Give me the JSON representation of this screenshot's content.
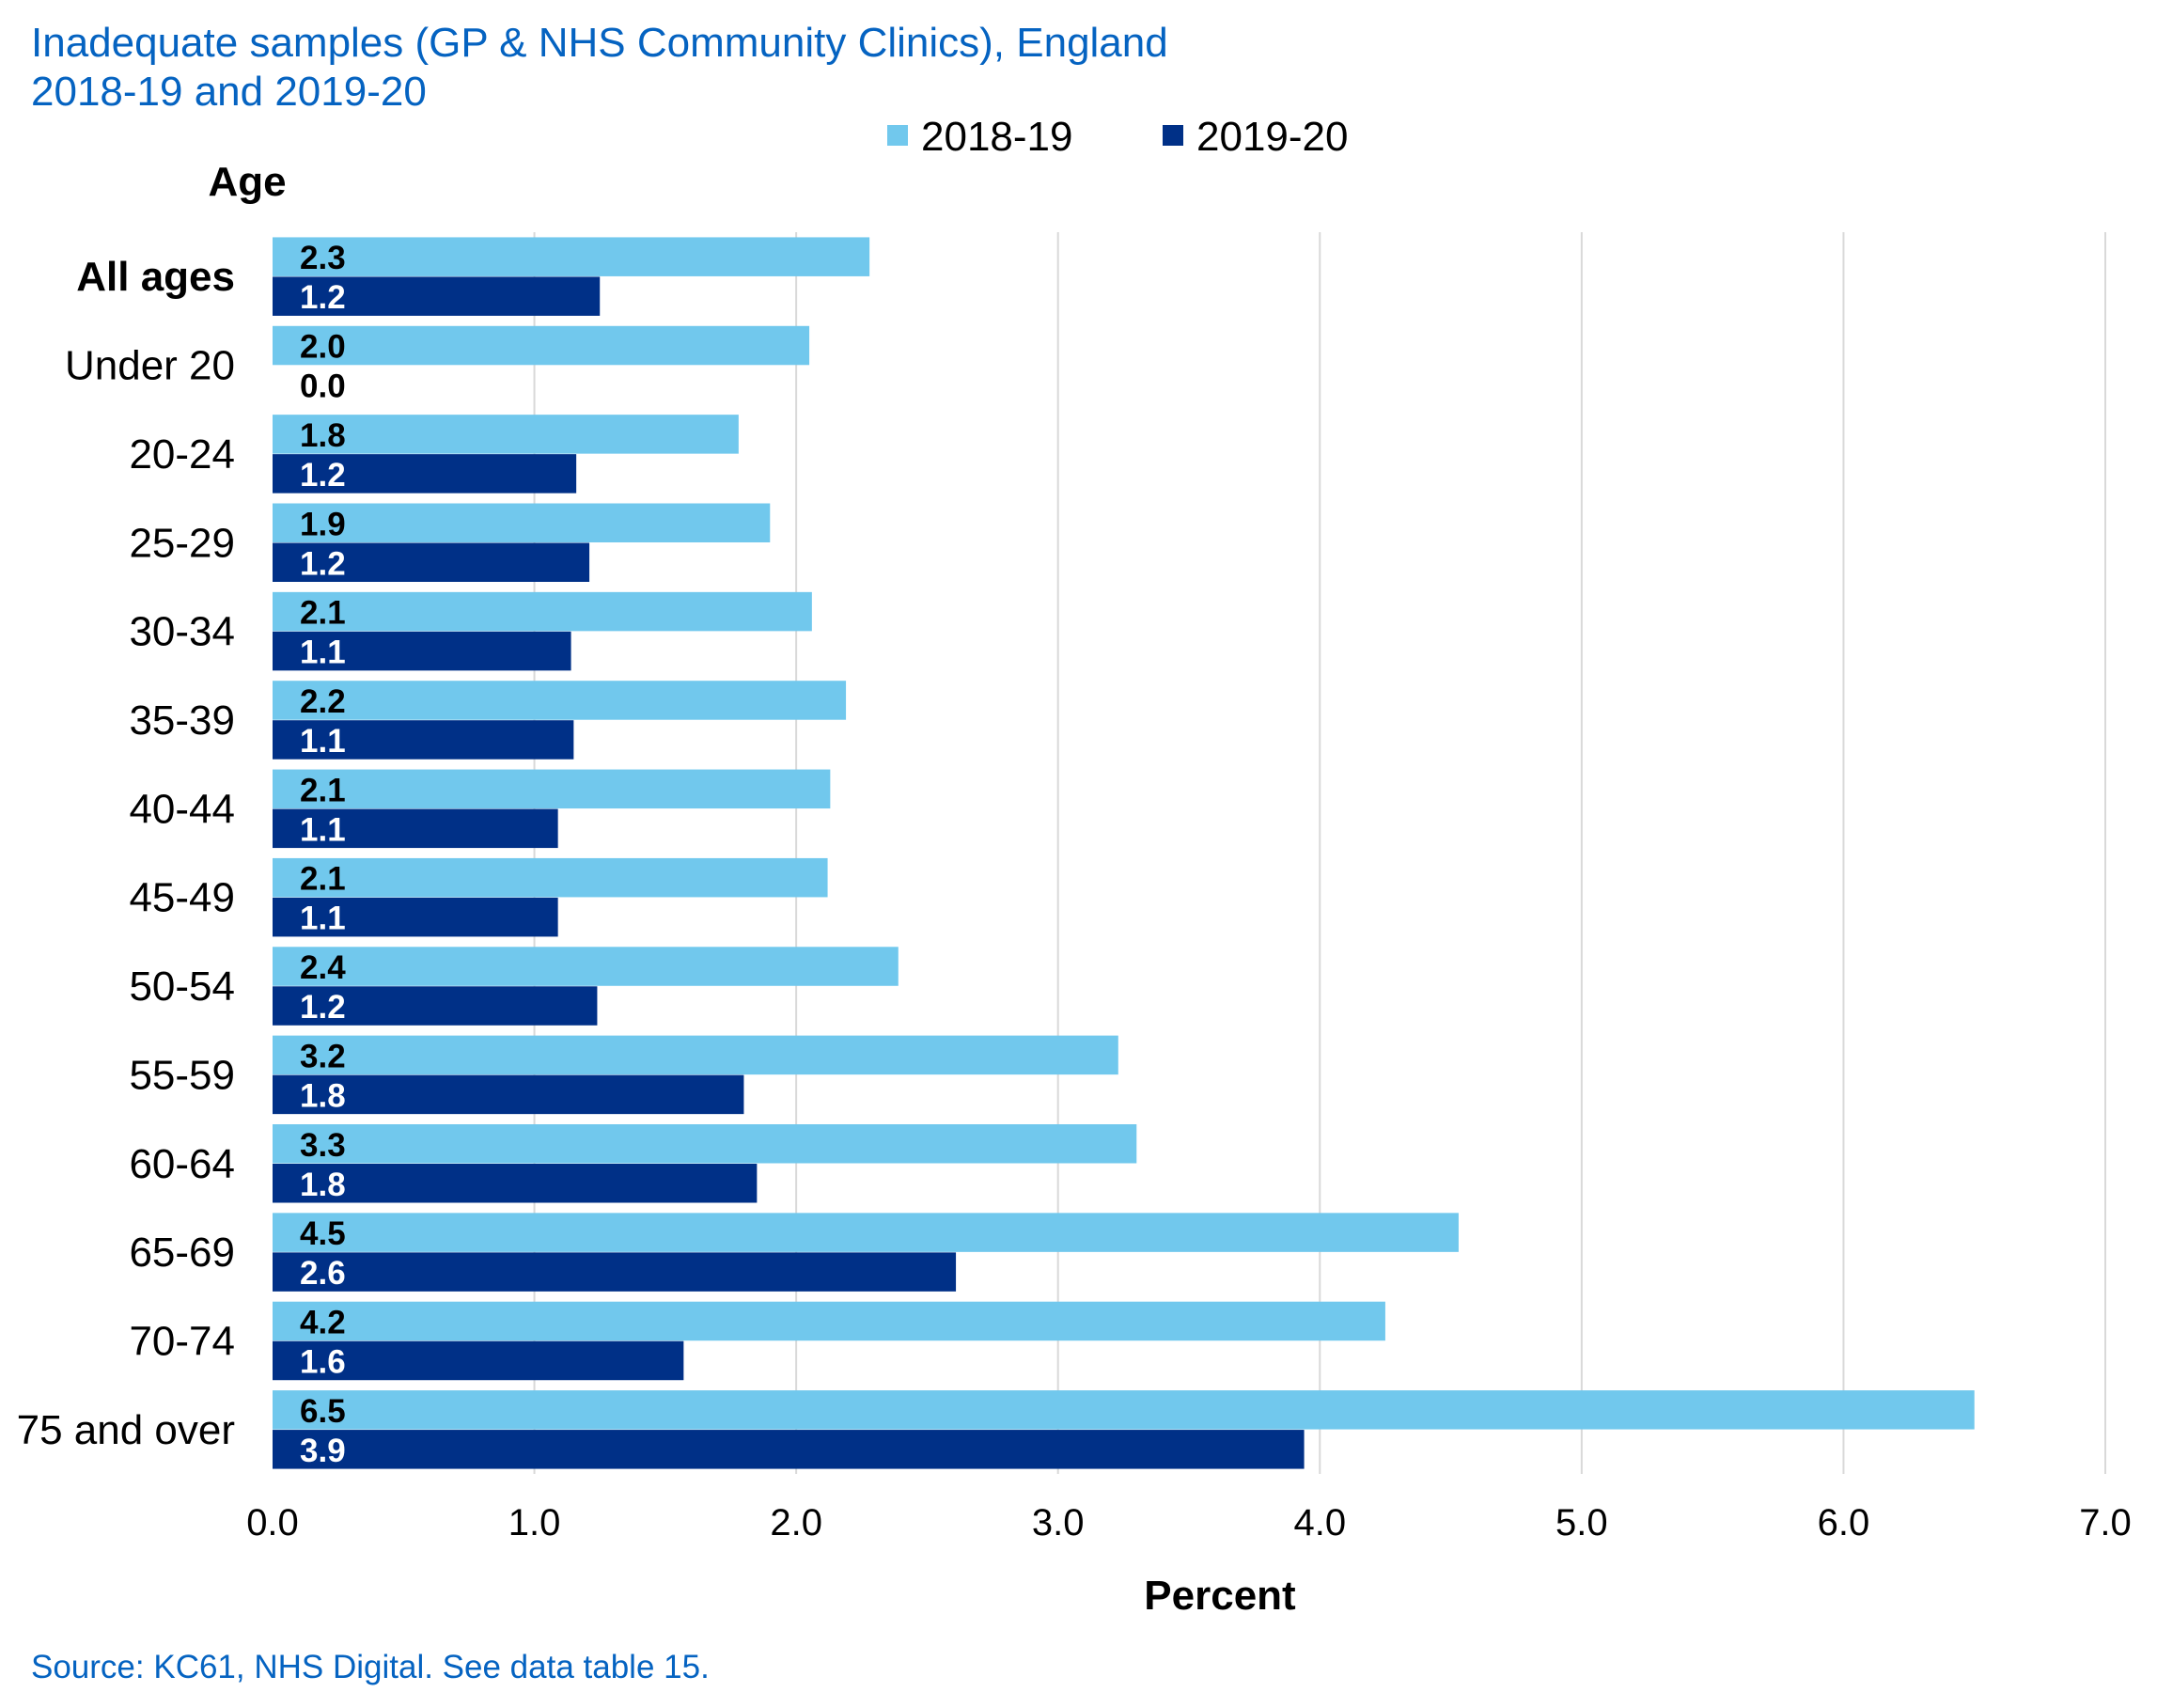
{
  "title_line1": "Inadequate samples (GP & NHS Community Clinics), England",
  "title_line2": "2018-19 and 2019-20",
  "source": "Source: KC61, NHS Digital.  See data table 15.",
  "chart_data": {
    "type": "bar",
    "orientation": "horizontal",
    "ylabel": "Age",
    "xlabel": "Percent",
    "xlim": [
      0,
      7
    ],
    "x_ticks": [
      "0.0",
      "1.0",
      "2.0",
      "3.0",
      "4.0",
      "5.0",
      "6.0",
      "7.0"
    ],
    "grid": true,
    "legend_position": "top",
    "categories": [
      "All ages",
      "Under 20",
      "20-24",
      "25-29",
      "30-34",
      "35-39",
      "40-44",
      "45-49",
      "50-54",
      "55-59",
      "60-64",
      "65-69",
      "70-74",
      "75 and over"
    ],
    "series": [
      {
        "name": "2018-19",
        "color": "#71c8ed",
        "label_color": "#000000",
        "values": [
          2.28,
          2.05,
          1.78,
          1.9,
          2.06,
          2.19,
          2.13,
          2.12,
          2.39,
          3.23,
          3.3,
          4.53,
          4.25,
          6.5
        ],
        "labels": [
          "2.3",
          "2.0",
          "1.8",
          "1.9",
          "2.1",
          "2.2",
          "2.1",
          "2.1",
          "2.4",
          "3.2",
          "3.3",
          "4.5",
          "4.2",
          "6.5"
        ]
      },
      {
        "name": "2019-20",
        "color": "#003087",
        "label_color": "#ffffff",
        "values": [
          1.25,
          0.0,
          1.16,
          1.21,
          1.14,
          1.15,
          1.09,
          1.09,
          1.24,
          1.8,
          1.85,
          2.61,
          1.57,
          3.94
        ],
        "labels": [
          "1.2",
          "0.0",
          "1.2",
          "1.2",
          "1.1",
          "1.1",
          "1.1",
          "1.1",
          "1.2",
          "1.8",
          "1.8",
          "2.6",
          "1.6",
          "3.9"
        ]
      }
    ]
  }
}
